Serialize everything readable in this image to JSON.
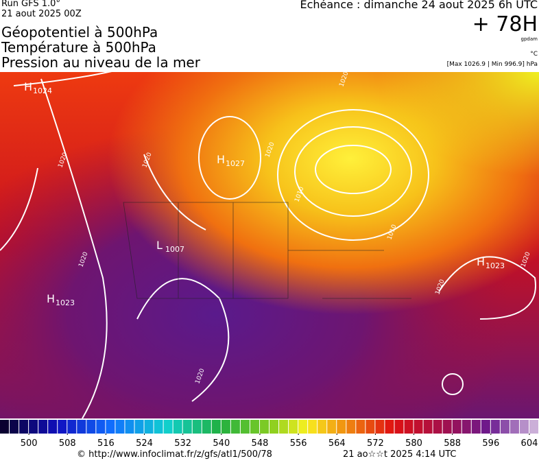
{
  "header": {
    "run": "Run GFS 1.0°",
    "date": "21 aout 2025 00Z",
    "titles": [
      "Géopotentiel à 500hPa",
      "Température à 500hPa",
      "Pression au niveau de la mer"
    ],
    "echeance": "Echéance : dimanche 24 aout 2025 6h UTC",
    "lead": "+ 78H",
    "unit_geo": "gpdam",
    "unit_temp": "°C",
    "maxmin": "[Max 1026.9 | Min 996.9] hPa"
  },
  "map": {
    "centers": [
      {
        "letter": "H",
        "value": "1024"
      },
      {
        "letter": "H",
        "value": "1027"
      },
      {
        "letter": "L",
        "value": "1007"
      },
      {
        "letter": "H",
        "value": "1023"
      },
      {
        "letter": "H",
        "value": "1023"
      }
    ],
    "isobar_labels": [
      "1020",
      "1020",
      "1020",
      "1020",
      "1020",
      "1020",
      "1020",
      "1010",
      "1010",
      "1020"
    ]
  },
  "colorbar": {
    "lim": [
      494,
      606
    ],
    "ticks": [
      500,
      508,
      516,
      524,
      532,
      540,
      548,
      556,
      564,
      572,
      580,
      588,
      596,
      604
    ]
  },
  "footer": {
    "url": "© http://www.infoclimat.fr/z/gfs/atl1/500/78",
    "timestamp": "21 ao☆☆t 2025  4:14 UTC"
  }
}
